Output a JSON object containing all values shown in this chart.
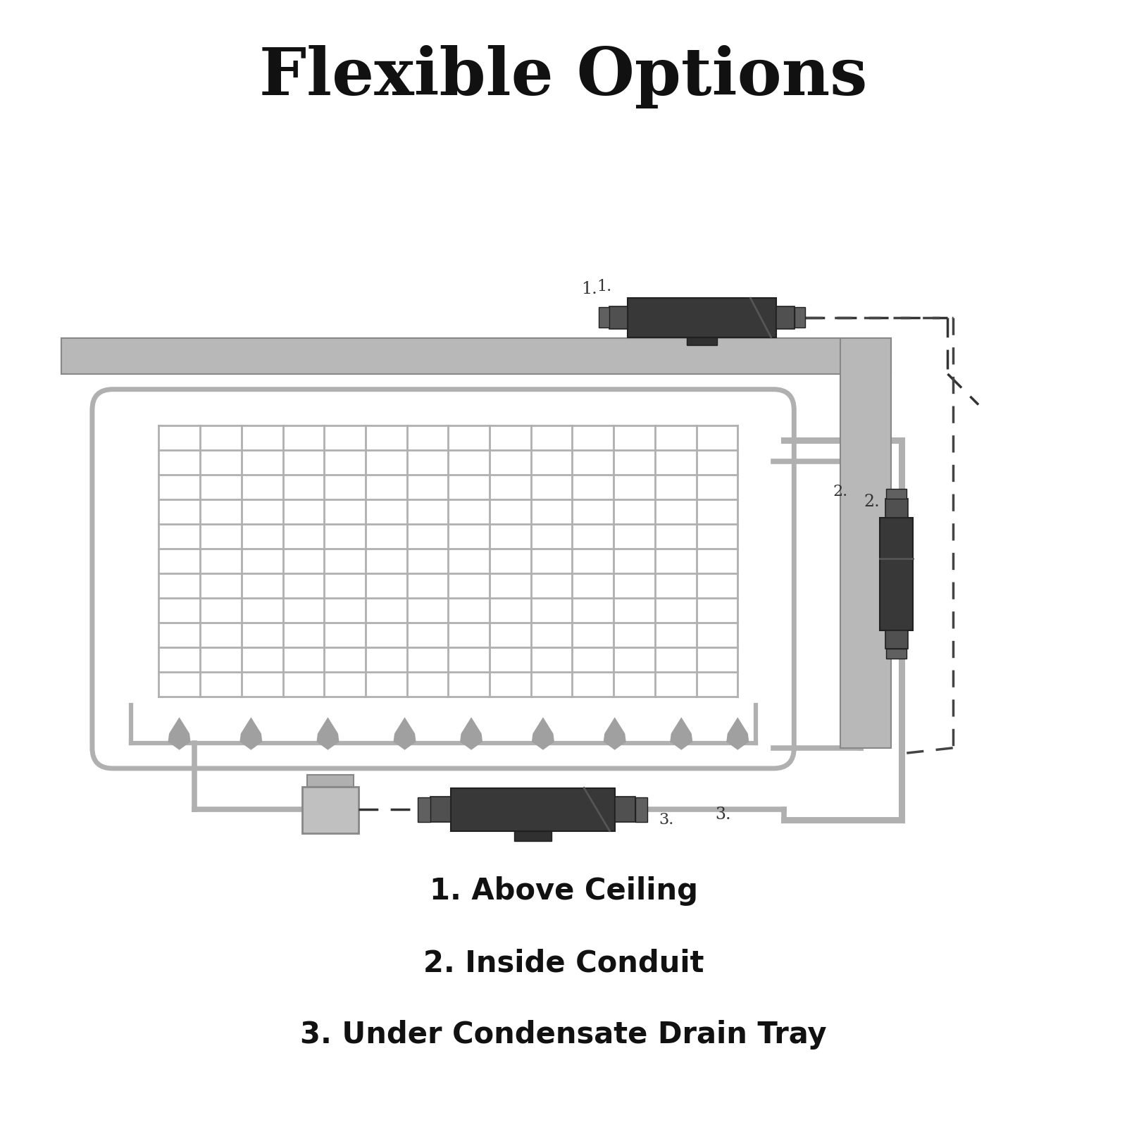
{
  "title": "Flexible Options",
  "title_fontsize": 68,
  "bg_color": "#ffffff",
  "diagram_color": "#b0b0b0",
  "pipe_color": "#b0b0b0",
  "pump_dark": "#383838",
  "pump_mid": "#484848",
  "pump_connector": "#585858",
  "text_color": "#111111",
  "label1": "1. Above Ceiling",
  "label2": "2. Inside Conduit",
  "label3": "3. Under Condensate Drain Tray",
  "label_fontsize": 30,
  "num1": "1.",
  "num2": "2.",
  "num3": "3.",
  "drop_color": "#a0a0a0",
  "ceiling_color": "#b8b8b8",
  "ceiling_edge": "#888888"
}
